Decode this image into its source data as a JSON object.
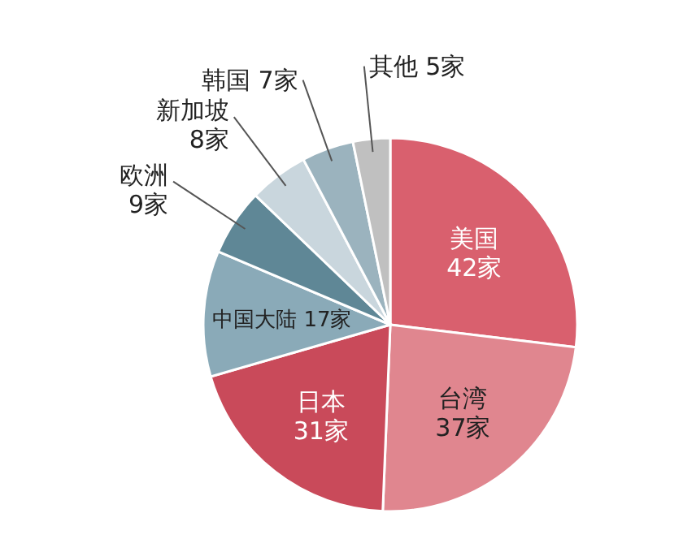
{
  "chart_data": {
    "type": "pie",
    "categories": [
      "美国",
      "台湾",
      "日本",
      "中国大陆",
      "欧洲",
      "新加坡",
      "韩国",
      "其他"
    ],
    "values": [
      42,
      37,
      31,
      17,
      9,
      8,
      7,
      5
    ],
    "value_labels": [
      "42家",
      "37家",
      "31家",
      "17家",
      "9家",
      "8家",
      "7家",
      "5家"
    ],
    "colors": [
      "#d9606e",
      "#e0868f",
      "#c94a5a",
      "#8aaab8",
      "#5f8796",
      "#c9d6dd",
      "#9bb3be",
      "#c0c0c0"
    ]
  }
}
